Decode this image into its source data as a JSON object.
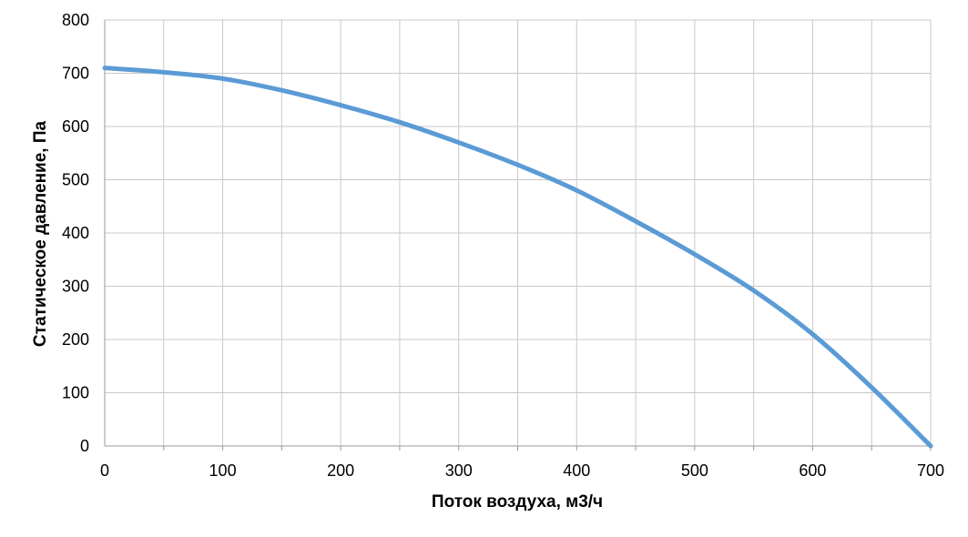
{
  "chart_data": {
    "type": "line",
    "title": "",
    "xlabel": "Поток воздуха, м3/ч",
    "ylabel": "Статическое давление, Па",
    "xlim": [
      0,
      700
    ],
    "ylim": [
      0,
      800
    ],
    "x_ticks": [
      0,
      100,
      200,
      300,
      400,
      500,
      600,
      700
    ],
    "y_ticks": [
      0,
      100,
      200,
      300,
      400,
      500,
      600,
      700,
      800
    ],
    "x_tick_labels": [
      "0",
      "100",
      "200",
      "300",
      "400",
      "500",
      "600",
      "700"
    ],
    "y_tick_labels": [
      "0",
      "100",
      "200",
      "300",
      "400",
      "500",
      "600",
      "700",
      "800"
    ],
    "grid": true,
    "legend": "none",
    "series": [
      {
        "color": "#5b9bd5",
        "x": [
          0,
          50,
          100,
          150,
          200,
          250,
          300,
          350,
          400,
          450,
          500,
          550,
          600,
          650,
          700
        ],
        "y": [
          710,
          702,
          690,
          668,
          640,
          608,
          570,
          528,
          480,
          422,
          360,
          292,
          210,
          110,
          0
        ]
      }
    ]
  }
}
